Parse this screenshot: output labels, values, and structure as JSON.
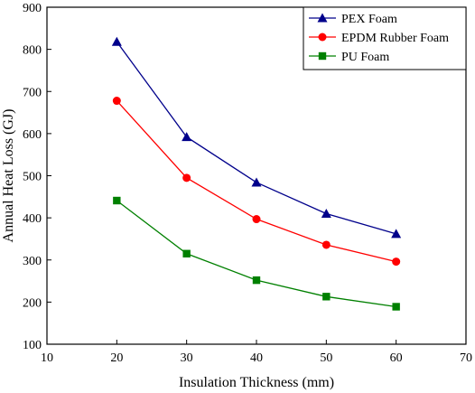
{
  "chart_data": {
    "type": "line",
    "xlabel": "Insulation Thickness (mm)",
    "ylabel": "Annual Heat Loss (GJ)",
    "xlim": [
      10,
      70
    ],
    "ylim": [
      100,
      900
    ],
    "xticks": [
      10,
      20,
      30,
      40,
      50,
      60,
      70
    ],
    "yticks": [
      100,
      200,
      300,
      400,
      500,
      600,
      700,
      800,
      900
    ],
    "grid": false,
    "legend_position": "top-right",
    "x": [
      20,
      30,
      40,
      50,
      60
    ],
    "series": [
      {
        "name": "PEX Foam",
        "color": "#00008b",
        "marker": "triangle",
        "values": [
          818,
          592,
          484,
          410,
          362
        ]
      },
      {
        "name": "EPDM Rubber Foam",
        "color": "#ff0000",
        "marker": "circle",
        "values": [
          678,
          495,
          397,
          336,
          296
        ]
      },
      {
        "name": "PU Foam",
        "color": "#008000",
        "marker": "square",
        "values": [
          441,
          315,
          252,
          213,
          189
        ]
      }
    ]
  }
}
